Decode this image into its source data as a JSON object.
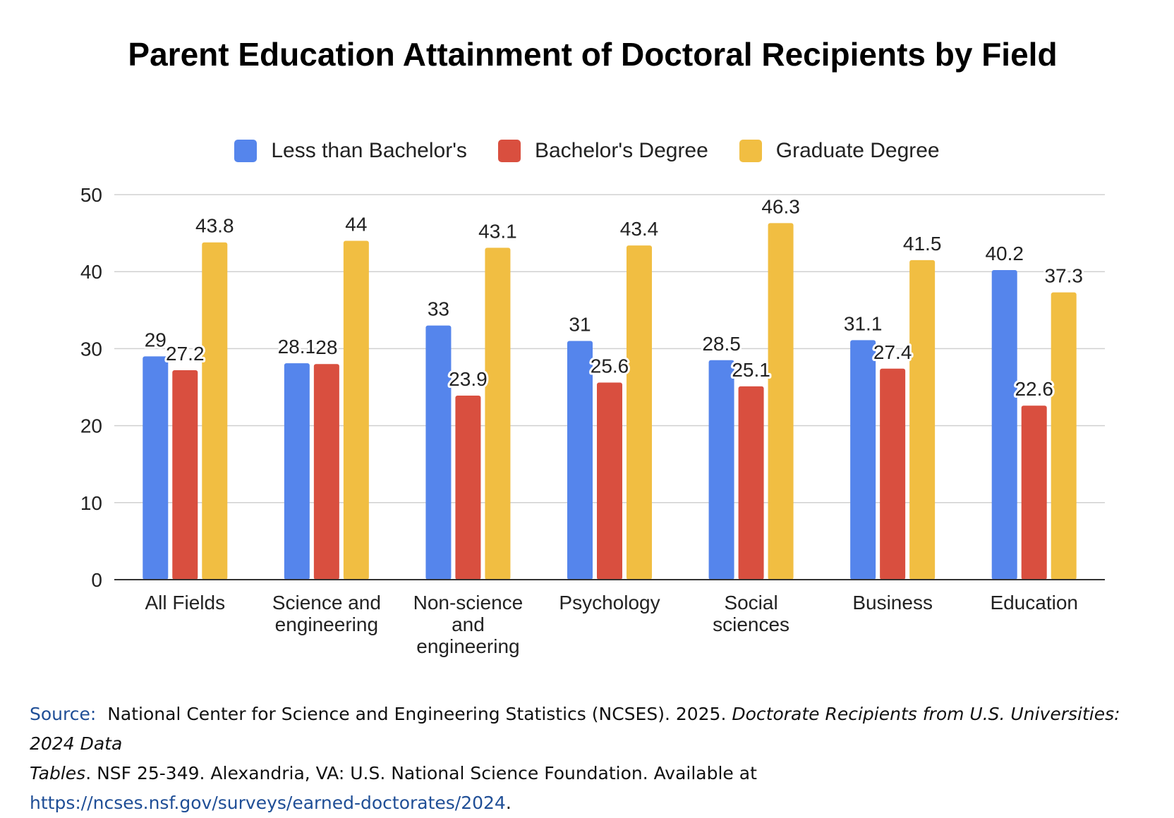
{
  "chart_data": {
    "type": "bar",
    "title": "Parent Education Attainment of Doctoral Recipients by Field",
    "xlabel": "",
    "ylabel": "",
    "ylim": [
      0,
      50
    ],
    "yticks": [
      "0",
      "10",
      "20",
      "30",
      "40",
      "50"
    ],
    "grid": true,
    "legend_position": "top",
    "categories": [
      [
        "All Fields"
      ],
      [
        "Science and",
        "engineering"
      ],
      [
        "Non-science",
        "and",
        "engineering"
      ],
      [
        "Psychology"
      ],
      [
        "Social",
        "sciences"
      ],
      [
        "Business"
      ],
      [
        "Education"
      ]
    ],
    "series": [
      {
        "name": "Less than Bachelor's",
        "color": "#5585ec",
        "values": [
          29,
          28.1,
          33,
          31,
          28.5,
          31.1,
          40.2
        ],
        "labels": [
          "29",
          "28.1",
          "33",
          "31",
          "28.5",
          "31.1",
          "40.2"
        ]
      },
      {
        "name": "Bachelor's Degree",
        "color": "#d94f3f",
        "values": [
          27.2,
          28,
          23.9,
          25.6,
          25.1,
          27.4,
          22.6
        ],
        "labels": [
          "27.2",
          "28",
          "23.9",
          "25.6",
          "25.1",
          "27.4",
          "22.6"
        ]
      },
      {
        "name": "Graduate Degree",
        "color": "#f1be42",
        "values": [
          43.8,
          44,
          43.1,
          43.4,
          46.3,
          41.5,
          37.3
        ],
        "labels": [
          "43.8",
          "44",
          "43.1",
          "43.4",
          "46.3",
          "41.5",
          "37.3"
        ]
      }
    ]
  },
  "source": {
    "prefix": "Source:",
    "text1": "National Center for Science and Engineering Statistics (NCSES). 2025.",
    "title_italic1": "Doctorate Recipients from U.S. Universities: 2024 Data",
    "title_italic2": "Tables",
    "text2": ". NSF 25-349. Alexandria, VA: U.S. National Science Foundation. Available at",
    "link": "https://ncses.nsf.gov/surveys/earned-doctorates/2024",
    "end": "."
  }
}
